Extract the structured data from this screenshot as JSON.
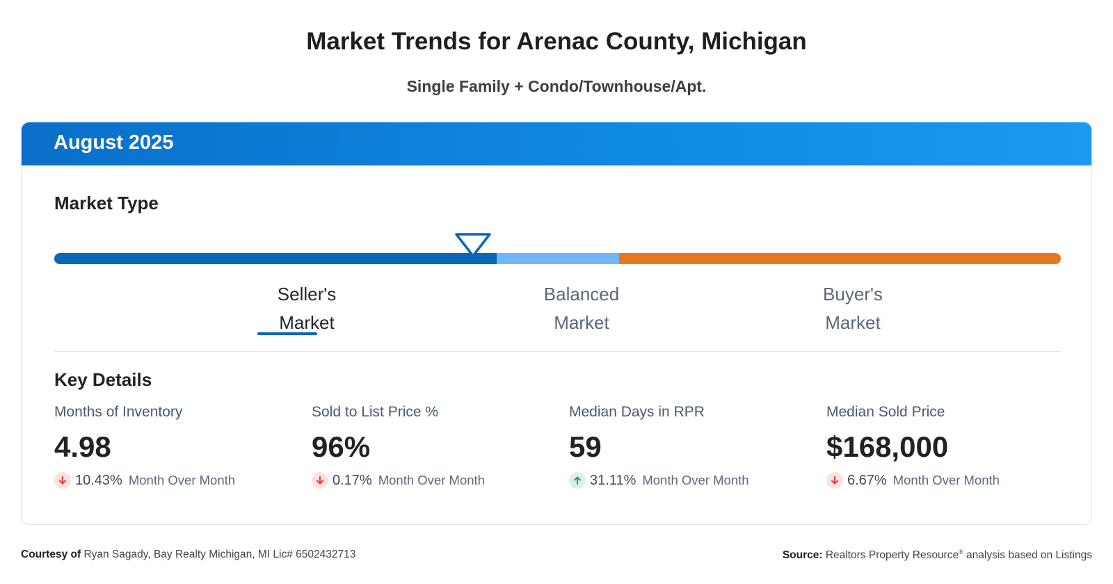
{
  "header": {
    "title": "Market Trends for Arenac County, Michigan",
    "subtitle": "Single Family + Condo/Townhouse/Apt."
  },
  "card": {
    "period": "August 2025",
    "market_type": {
      "title": "Market Type",
      "segments": [
        {
          "line1": "Seller's",
          "line2": "Market",
          "color": "#0a66b8",
          "selected": true
        },
        {
          "line1": "Balanced",
          "line2": "Market",
          "color": "#6fb8f5",
          "selected": false
        },
        {
          "line1": "Buyer's",
          "line2": "Market",
          "color": "#e87722",
          "selected": false
        }
      ]
    },
    "key_details": {
      "title": "Key Details",
      "metrics": [
        {
          "label": "Months of Inventory",
          "value": "4.98",
          "change_pct": "10.43%",
          "direction": "down",
          "change_text": "Month Over Month"
        },
        {
          "label": "Sold to List Price %",
          "value": "96%",
          "change_pct": "0.17%",
          "direction": "down",
          "change_text": "Month Over Month"
        },
        {
          "label": "Median Days in RPR",
          "value": "59",
          "change_pct": "31.11%",
          "direction": "up",
          "change_text": "Month Over Month"
        },
        {
          "label": "Median Sold Price",
          "value": "$168,000",
          "change_pct": "6.67%",
          "direction": "down",
          "change_text": "Month Over Month"
        }
      ]
    }
  },
  "footer": {
    "courtesy_label": "Courtesy of",
    "courtesy_text": "Ryan Sagady, Bay Realty Michigan, MI Lic# 6502432713",
    "source_label": "Source:",
    "source_text": "Realtors Property Resource",
    "source_sup": "®",
    "source_suffix": "analysis based on Listings"
  },
  "colors": {
    "header_gradient_start": "#0a6fc9",
    "header_gradient_end": "#1a98f2",
    "down_arrow": "#d9473a",
    "up_arrow": "#2e9e63"
  }
}
